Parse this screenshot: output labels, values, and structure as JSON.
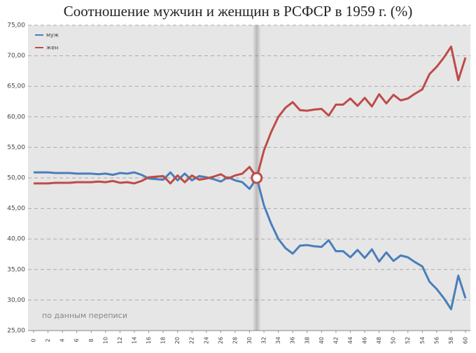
{
  "chart_data": {
    "type": "line",
    "title": "Соотношение мужчин и женщин в РСФСР в 1959 г. (%)",
    "annotation": "по данным переписи",
    "x": [
      0,
      1,
      2,
      3,
      4,
      5,
      6,
      7,
      8,
      9,
      10,
      11,
      12,
      13,
      14,
      15,
      16,
      17,
      18,
      19,
      20,
      21,
      22,
      23,
      24,
      25,
      26,
      27,
      28,
      29,
      30,
      31,
      32,
      33,
      34,
      35,
      36,
      37,
      38,
      39,
      40,
      41,
      42,
      43,
      44,
      45,
      46,
      47,
      48,
      49,
      50,
      51,
      52,
      53,
      54,
      55,
      56,
      57,
      58,
      59,
      60
    ],
    "series": [
      {
        "name": "муж",
        "color": "#4a7ebb",
        "values": [
          50.9,
          50.9,
          50.9,
          50.8,
          50.8,
          50.8,
          50.7,
          50.7,
          50.7,
          50.6,
          50.7,
          50.5,
          50.8,
          50.7,
          50.9,
          50.5,
          49.9,
          49.8,
          49.7,
          50.9,
          49.6,
          50.7,
          49.6,
          50.3,
          50.1,
          49.8,
          49.4,
          50.1,
          49.6,
          49.3,
          48.2,
          50.0,
          45.5,
          42.5,
          40.0,
          38.5,
          37.6,
          38.9,
          39.0,
          38.8,
          38.7,
          39.8,
          38.0,
          38.0,
          37.0,
          38.2,
          36.9,
          38.3,
          36.3,
          37.8,
          36.4,
          37.3,
          37.0,
          36.2,
          35.5,
          33.0,
          31.8,
          30.3,
          28.5,
          34.0,
          30.3
        ]
      },
      {
        "name": "жен",
        "color": "#be4b48",
        "values": [
          49.1,
          49.1,
          49.1,
          49.2,
          49.2,
          49.2,
          49.3,
          49.3,
          49.3,
          49.4,
          49.3,
          49.5,
          49.2,
          49.3,
          49.1,
          49.5,
          50.1,
          50.2,
          50.3,
          49.1,
          50.4,
          49.3,
          50.4,
          49.7,
          49.9,
          50.2,
          50.6,
          49.9,
          50.4,
          50.7,
          51.8,
          50.0,
          54.5,
          57.5,
          60.0,
          61.5,
          62.4,
          61.1,
          61.0,
          61.2,
          61.3,
          60.2,
          62.0,
          62.0,
          63.0,
          61.8,
          63.1,
          61.7,
          63.7,
          62.2,
          63.6,
          62.7,
          63.0,
          63.8,
          64.5,
          67.0,
          68.2,
          69.7,
          71.5,
          66.0,
          69.7
        ]
      }
    ],
    "xlim": [
      0,
      60
    ],
    "xticks": [
      0,
      2,
      4,
      6,
      8,
      10,
      12,
      14,
      16,
      18,
      20,
      22,
      24,
      26,
      28,
      30,
      32,
      34,
      36,
      38,
      40,
      42,
      44,
      46,
      48,
      50,
      52,
      54,
      56,
      58,
      60
    ],
    "ylim": [
      25,
      75
    ],
    "yticks": [
      {
        "value": 25,
        "label": "25,00"
      },
      {
        "value": 30,
        "label": "30,00"
      },
      {
        "value": 35,
        "label": "35,00"
      },
      {
        "value": 40,
        "label": "40,00"
      },
      {
        "value": 45,
        "label": "45,00"
      },
      {
        "value": 50,
        "label": "50,00"
      },
      {
        "value": 55,
        "label": "55,00"
      },
      {
        "value": 60,
        "label": "60,00"
      },
      {
        "value": 65,
        "label": "65,00"
      },
      {
        "value": 70,
        "label": "70,00"
      },
      {
        "value": 75,
        "label": "75,00"
      }
    ],
    "grid": true,
    "legend": "top-left"
  }
}
